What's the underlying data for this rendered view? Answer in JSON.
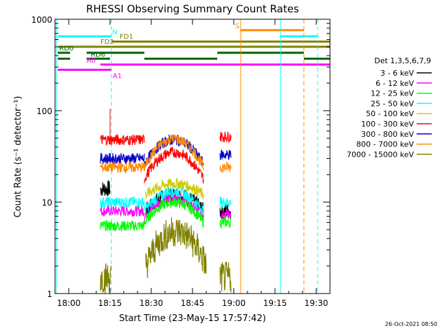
{
  "chart_data": {
    "type": "line",
    "title": "RHESSI Observing Summary Count Rates",
    "xlabel": "Start Time (23-May-15 17:57:42)",
    "ylabel": "Count Rate (s⁻¹ detector⁻¹)",
    "yscale": "log",
    "ylim": [
      1,
      1000
    ],
    "xlim_minutes": [
      -3,
      97
    ],
    "x_ticks": [
      {
        "min": 2,
        "label": "18:00"
      },
      {
        "min": 17,
        "label": "18:15"
      },
      {
        "min": 32,
        "label": "18:30"
      },
      {
        "min": 47,
        "label": "18:45"
      },
      {
        "min": 62,
        "label": "19:00"
      },
      {
        "min": 77,
        "label": "19:15"
      },
      {
        "min": 92,
        "label": "19:30"
      }
    ],
    "y_ticks": [
      {
        "value": 1,
        "label": "1"
      },
      {
        "value": 10,
        "label": "10"
      },
      {
        "value": 100,
        "label": "100"
      },
      {
        "value": 1000,
        "label": "1000"
      }
    ],
    "legend_title": "Det 1,3,5,6,7,9",
    "legend_position": "right",
    "series": [
      {
        "name": "3 - 6 keV",
        "color": "#000000",
        "segments": [
          {
            "from": 13.5,
            "to": 17.0,
            "value": 14
          },
          {
            "from": 30,
            "to": 51,
            "value": 8,
            "peak": 12
          },
          {
            "from": 57,
            "to": 61,
            "value": 8
          }
        ],
        "x": [
          13.5,
          17.0,
          30,
          40.5,
          51,
          57,
          61
        ],
        "values": [
          14,
          14,
          8,
          12,
          8,
          8,
          8
        ]
      },
      {
        "name": "6 - 12 keV",
        "color": "#ff00ff",
        "segments": [
          {
            "from": 13.5,
            "to": 29.5,
            "value": 8
          },
          {
            "from": 29.5,
            "to": 51,
            "value": 7,
            "peak": 11
          },
          {
            "from": 57,
            "to": 61,
            "value": 7.5
          }
        ],
        "x": [
          13.5,
          29.5,
          40.5,
          51,
          57,
          61
        ],
        "values": [
          8,
          7,
          11,
          7,
          7.5,
          7.5
        ]
      },
      {
        "name": "12 - 25 keV",
        "color": "#00ff00",
        "segments": [
          {
            "from": 13.5,
            "to": 29.5,
            "value": 5.5
          },
          {
            "from": 29.5,
            "to": 51,
            "value": 6,
            "peak": 10
          },
          {
            "from": 57,
            "to": 61,
            "value": 6
          }
        ],
        "x": [
          13.5,
          29.5,
          40.5,
          51,
          57,
          61
        ],
        "values": [
          5.5,
          6,
          10,
          6,
          6,
          6
        ]
      },
      {
        "name": "25 - 50 keV",
        "color": "#00ffff",
        "segments": [
          {
            "from": 13.5,
            "to": 29.5,
            "value": 10
          },
          {
            "from": 29.5,
            "to": 51,
            "value": 8,
            "peak": 13
          },
          {
            "from": 57,
            "to": 61,
            "value": 10
          }
        ],
        "x": [
          13.5,
          29.5,
          40.5,
          51,
          57,
          61
        ],
        "values": [
          10,
          8,
          13,
          8,
          10,
          10
        ]
      },
      {
        "name": "50 - 100 keV",
        "color": "#cccc00",
        "segments": [
          {
            "from": 30,
            "to": 51,
            "value": 12,
            "peak": 16
          }
        ],
        "x": [
          30,
          40.5,
          51
        ],
        "values": [
          12,
          16,
          12
        ]
      },
      {
        "name": "100 - 300 keV",
        "color": "#ff0000",
        "segments": [
          {
            "from": 13.5,
            "to": 29.5,
            "value": 48
          },
          {
            "from": 29.5,
            "to": 51,
            "value": 18,
            "peak": 35
          },
          {
            "from": 57,
            "to": 61,
            "value": 52
          }
        ],
        "x": [
          13.5,
          29.5,
          40.5,
          51,
          57,
          61
        ],
        "values": [
          48,
          18,
          35,
          18,
          52,
          52
        ]
      },
      {
        "name": "300 - 800 keV",
        "color": "#0000cc",
        "segments": [
          {
            "from": 13.5,
            "to": 29.5,
            "value": 30
          },
          {
            "from": 29.5,
            "to": 51,
            "value": 26,
            "peak": 48
          },
          {
            "from": 57,
            "to": 61,
            "value": 33
          }
        ],
        "x": [
          13.5,
          29.5,
          40.5,
          51,
          57,
          61
        ],
        "values": [
          30,
          26,
          48,
          26,
          33,
          33
        ]
      },
      {
        "name": "800 - 7000 keV",
        "color": "#ff8800",
        "segments": [
          {
            "from": 13.5,
            "to": 29.5,
            "value": 24
          },
          {
            "from": 29.5,
            "to": 51,
            "value": 24,
            "peak": 49
          },
          {
            "from": 57,
            "to": 61,
            "value": 24
          }
        ],
        "x": [
          13.5,
          29.5,
          40.5,
          51,
          57,
          61
        ],
        "values": [
          24,
          24,
          49,
          24,
          24,
          24
        ]
      },
      {
        "name": "7000 - 15000 keV",
        "color": "#808000",
        "segments": [
          {
            "from": 13.5,
            "to": 17.5,
            "value": 1.5
          },
          {
            "from": 30,
            "to": 52,
            "value": 2.0,
            "peak": 4.8
          },
          {
            "from": 57,
            "to": 61,
            "value": 1.5
          }
        ],
        "x": [
          13.5,
          17.5,
          30,
          40.5,
          52,
          57,
          61
        ],
        "values": [
          1.5,
          1.5,
          2.0,
          4.8,
          2.0,
          1.5,
          1.5
        ]
      }
    ],
    "flag_bars": [
      {
        "label": "N",
        "color": "#00ffff",
        "level": 650,
        "segments": [
          [
            -2,
            17.5
          ],
          [
            79,
            92.5
          ]
        ]
      },
      {
        "label": "S",
        "color": "#ff8800",
        "level": 760,
        "segments": [
          [
            64.5,
            87.5
          ]
        ]
      },
      {
        "label": "FD1",
        "color": "#808000",
        "level": 570,
        "segments": [
          [
            17.5,
            97
          ]
        ]
      },
      {
        "label": "FD2",
        "color": "#808000",
        "level": 500,
        "segments": [
          [
            -2,
            97
          ]
        ]
      },
      {
        "label": "RD0",
        "color": "#006600",
        "level": 430,
        "segments": [
          [
            -2,
            2.5
          ],
          [
            8.5,
            29.5
          ],
          [
            56,
            87.5
          ]
        ]
      },
      {
        "label": "RD6",
        "color": "#006600",
        "level": 370,
        "segments": [
          [
            -2,
            2.5
          ],
          [
            8.5,
            17
          ],
          [
            29.5,
            56
          ],
          [
            87.5,
            97
          ]
        ]
      },
      {
        "label": "A0",
        "color": "#ff00ff",
        "level": 320,
        "segments": [
          [
            13.5,
            97
          ]
        ]
      },
      {
        "label": "A1",
        "color": "#ff00ff",
        "level": 280,
        "segments": [
          [
            -2,
            17.5
          ]
        ]
      }
    ],
    "event_lines": [
      {
        "x": -2.5,
        "color": "#00ffff",
        "style": "solid"
      },
      {
        "x": 17.5,
        "color": "#00ffff",
        "style": "dashed"
      },
      {
        "x": 64.5,
        "color": "#ff8800",
        "style": "solid"
      },
      {
        "x": 79,
        "color": "#00ffff",
        "style": "solid"
      },
      {
        "x": 87.5,
        "color": "#ff8800",
        "style": "dashed"
      },
      {
        "x": 92.5,
        "color": "#00ffff",
        "style": "dashed"
      }
    ],
    "grid": false
  },
  "footer_timestamp": "26-Oct-2021 08:50"
}
